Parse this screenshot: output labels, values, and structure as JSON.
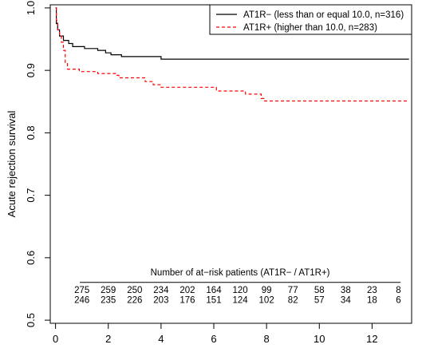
{
  "chart_data": {
    "type": "line",
    "title": "",
    "xlabel": "",
    "ylabel": "Acute rejection survival",
    "xlim": [
      -0.2,
      13.5
    ],
    "ylim": [
      0.495,
      1.005
    ],
    "x_ticks": [
      "0",
      "2",
      "4",
      "6",
      "8",
      "10",
      "12"
    ],
    "y_ticks": [
      "0.5",
      "0.6",
      "0.7",
      "0.8",
      "0.9",
      "1.0"
    ],
    "grid": false,
    "legend_position": "top-right",
    "series": [
      {
        "name": "AT1R− (less than or equal 10.0, n=316)",
        "color": "#000000",
        "dash": "solid",
        "steps": [
          [
            0,
            1.0
          ],
          [
            0.03,
            0.975
          ],
          [
            0.08,
            0.965
          ],
          [
            0.15,
            0.955
          ],
          [
            0.3,
            0.948
          ],
          [
            0.5,
            0.943
          ],
          [
            0.65,
            0.938
          ],
          [
            1.1,
            0.935
          ],
          [
            1.6,
            0.932
          ],
          [
            1.9,
            0.928
          ],
          [
            2.1,
            0.925
          ],
          [
            2.5,
            0.922
          ],
          [
            4.0,
            0.918
          ],
          [
            13.4,
            0.918
          ]
        ]
      },
      {
        "name": "AT1R+ (higher than 10.0, n=283)",
        "color": "#ff0000",
        "dash": "dashed",
        "steps": [
          [
            0,
            1.0
          ],
          [
            0.03,
            0.98
          ],
          [
            0.08,
            0.965
          ],
          [
            0.15,
            0.955
          ],
          [
            0.22,
            0.945
          ],
          [
            0.3,
            0.932
          ],
          [
            0.37,
            0.912
          ],
          [
            0.45,
            0.902
          ],
          [
            0.9,
            0.898
          ],
          [
            1.6,
            0.895
          ],
          [
            2.3,
            0.892
          ],
          [
            2.4,
            0.888
          ],
          [
            3.4,
            0.882
          ],
          [
            3.7,
            0.877
          ],
          [
            4.0,
            0.873
          ],
          [
            6.1,
            0.867
          ],
          [
            7.2,
            0.862
          ],
          [
            7.8,
            0.855
          ],
          [
            7.9,
            0.851
          ],
          [
            13.4,
            0.851
          ]
        ]
      }
    ],
    "at_risk": {
      "title": "Number of at−risk patients (AT1R− / AT1R+)",
      "times": [
        1,
        2,
        3,
        4,
        5,
        6,
        7,
        8,
        9,
        10,
        11,
        12,
        13
      ],
      "rows": [
        [
          "275",
          "259",
          "250",
          "234",
          "202",
          "164",
          "120",
          "99",
          "77",
          "58",
          "38",
          "23",
          "8"
        ],
        [
          "246",
          "235",
          "226",
          "203",
          "176",
          "151",
          "124",
          "102",
          "82",
          "57",
          "34",
          "18",
          "6"
        ]
      ]
    }
  }
}
